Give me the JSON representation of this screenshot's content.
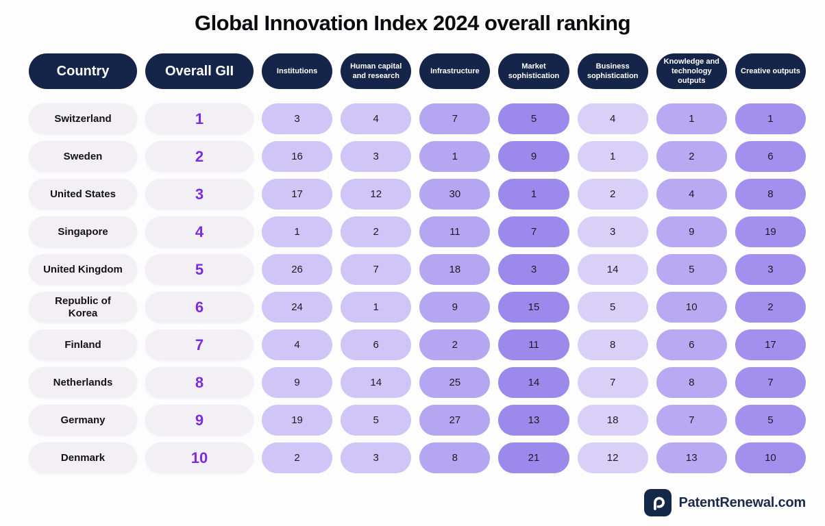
{
  "title": "Global Innovation Index 2024 overall ranking",
  "columns": [
    {
      "key": "country",
      "label": "Country"
    },
    {
      "key": "overall-gii",
      "label": "Overall GII"
    },
    {
      "key": "institutions",
      "label": "Institutions",
      "color": "#cfc5f7"
    },
    {
      "key": "human-capital-and-research",
      "label": "Human capital and research",
      "color": "#cfc5f7"
    },
    {
      "key": "infrastructure",
      "label": "Infrastructure",
      "color": "#b5a6f1"
    },
    {
      "key": "market-sophistication",
      "label": "Market sophistication",
      "color": "#9c89ec"
    },
    {
      "key": "business-sophistication",
      "label": "Business sophistication",
      "color": "#d9d0f8"
    },
    {
      "key": "knowledge-and-technology-outputs",
      "label": "Knowledge and technology outputs",
      "color": "#b8a9f2"
    },
    {
      "key": "creative-outputs",
      "label": "Creative outputs",
      "color": "#a28fee"
    }
  ],
  "rows": [
    {
      "country": "Switzerland",
      "overall": "1",
      "values": [
        3,
        4,
        7,
        5,
        4,
        1,
        1
      ]
    },
    {
      "country": "Sweden",
      "overall": "2",
      "values": [
        16,
        3,
        1,
        9,
        1,
        2,
        6
      ]
    },
    {
      "country": "United States",
      "overall": "3",
      "values": [
        17,
        12,
        30,
        1,
        2,
        4,
        8
      ]
    },
    {
      "country": "Singapore",
      "overall": "4",
      "values": [
        1,
        2,
        11,
        7,
        3,
        9,
        19
      ]
    },
    {
      "country": "United Kingdom",
      "overall": "5",
      "values": [
        26,
        7,
        18,
        3,
        14,
        5,
        3
      ]
    },
    {
      "country": "Republic of Korea",
      "overall": "6",
      "values": [
        24,
        1,
        9,
        15,
        5,
        10,
        2
      ]
    },
    {
      "country": "Finland",
      "overall": "7",
      "values": [
        4,
        6,
        2,
        11,
        8,
        6,
        17
      ]
    },
    {
      "country": "Netherlands",
      "overall": "8",
      "values": [
        9,
        14,
        25,
        14,
        7,
        8,
        7
      ]
    },
    {
      "country": "Germany",
      "overall": "9",
      "values": [
        19,
        5,
        27,
        13,
        18,
        7,
        5
      ]
    },
    {
      "country": "Denmark",
      "overall": "10",
      "values": [
        2,
        3,
        8,
        21,
        12,
        13,
        10
      ]
    }
  ],
  "footer": {
    "brand": "PatentRenewal.com",
    "logo_icon": "magnifier-p-icon"
  },
  "colors": {
    "header_navy": "#152549",
    "neutral_pill": "#f2f0f5",
    "overall_rank_accent": "#7a2ce0",
    "page_background": "#fdfdfe",
    "logo_navy": "#15284a"
  },
  "chart_data": {
    "type": "table",
    "title": "Global Innovation Index 2024 overall ranking",
    "columns": [
      "Country",
      "Overall GII",
      "Institutions",
      "Human capital and research",
      "Infrastructure",
      "Market sophistication",
      "Business sophistication",
      "Knowledge and technology outputs",
      "Creative outputs"
    ],
    "rows": [
      [
        "Switzerland",
        1,
        3,
        4,
        7,
        5,
        4,
        1,
        1
      ],
      [
        "Sweden",
        2,
        16,
        3,
        1,
        9,
        1,
        2,
        6
      ],
      [
        "United States",
        3,
        17,
        12,
        30,
        1,
        2,
        4,
        8
      ],
      [
        "Singapore",
        4,
        1,
        2,
        11,
        7,
        3,
        9,
        19
      ],
      [
        "United Kingdom",
        5,
        26,
        7,
        18,
        3,
        14,
        5,
        3
      ],
      [
        "Republic of Korea",
        6,
        24,
        1,
        9,
        15,
        5,
        10,
        2
      ],
      [
        "Finland",
        7,
        4,
        6,
        2,
        11,
        8,
        6,
        17
      ],
      [
        "Netherlands",
        8,
        9,
        14,
        25,
        14,
        7,
        8,
        7
      ],
      [
        "Germany",
        9,
        19,
        5,
        27,
        13,
        18,
        7,
        5
      ],
      [
        "Denmark",
        10,
        2,
        3,
        8,
        21,
        12,
        13,
        10
      ]
    ]
  }
}
